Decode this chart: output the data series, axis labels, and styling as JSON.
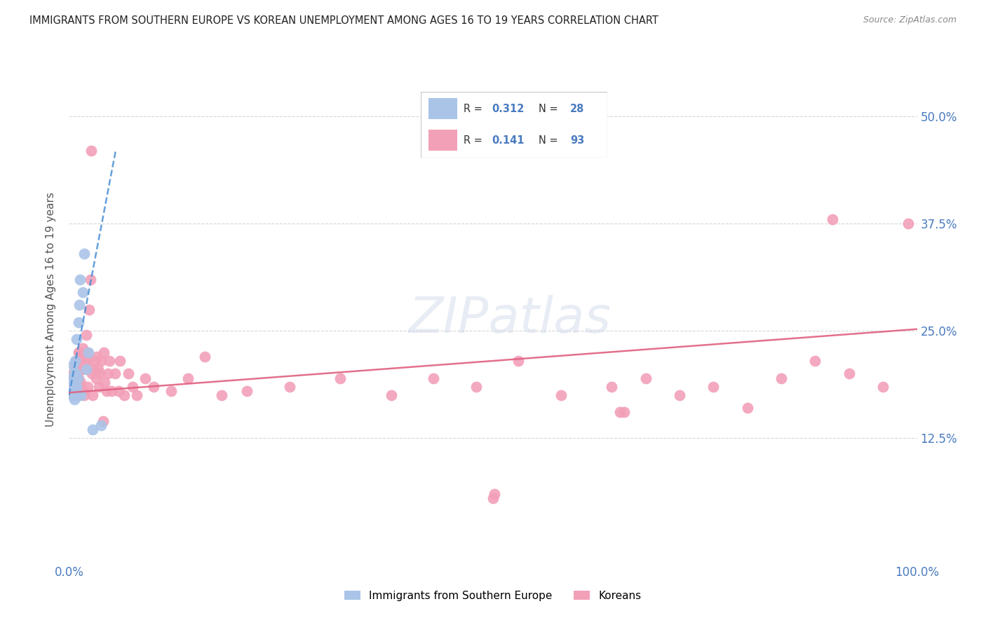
{
  "title": "IMMIGRANTS FROM SOUTHERN EUROPE VS KOREAN UNEMPLOYMENT AMONG AGES 16 TO 19 YEARS CORRELATION CHART",
  "source": "Source: ZipAtlas.com",
  "ylabel": "Unemployment Among Ages 16 to 19 years",
  "blue_R": 0.312,
  "blue_N": 28,
  "pink_R": 0.141,
  "pink_N": 93,
  "blue_color": "#aac4e8",
  "pink_color": "#f2a0b8",
  "trendline_blue_color": "#4a8fd4",
  "trendline_pink_color": "#e06080",
  "background_color": "#ffffff",
  "grid_color": "#d8d8d8",
  "xlim": [
    0.0,
    1.0
  ],
  "ylim": [
    -0.02,
    0.57
  ],
  "ytick_vals": [
    0.125,
    0.25,
    0.375,
    0.5
  ],
  "ytick_labels": [
    "12.5%",
    "25.0%",
    "37.5%",
    "50.0%"
  ],
  "blue_x": [
    0.003,
    0.004,
    0.004,
    0.005,
    0.005,
    0.005,
    0.006,
    0.006,
    0.006,
    0.007,
    0.007,
    0.007,
    0.008,
    0.008,
    0.009,
    0.009,
    0.01,
    0.01,
    0.011,
    0.012,
    0.013,
    0.014,
    0.016,
    0.018,
    0.02,
    0.023,
    0.028,
    0.038
  ],
  "blue_y": [
    0.185,
    0.175,
    0.195,
    0.18,
    0.195,
    0.21,
    0.185,
    0.2,
    0.17,
    0.19,
    0.175,
    0.215,
    0.2,
    0.175,
    0.24,
    0.185,
    0.195,
    0.175,
    0.26,
    0.28,
    0.31,
    0.175,
    0.295,
    0.34,
    0.205,
    0.225,
    0.135,
    0.14
  ],
  "pink_x": [
    0.003,
    0.004,
    0.005,
    0.005,
    0.006,
    0.006,
    0.007,
    0.007,
    0.007,
    0.008,
    0.008,
    0.009,
    0.009,
    0.009,
    0.01,
    0.01,
    0.01,
    0.011,
    0.011,
    0.012,
    0.012,
    0.013,
    0.013,
    0.014,
    0.015,
    0.015,
    0.016,
    0.016,
    0.017,
    0.018,
    0.019,
    0.02,
    0.02,
    0.021,
    0.022,
    0.022,
    0.023,
    0.024,
    0.025,
    0.026,
    0.027,
    0.028,
    0.029,
    0.03,
    0.032,
    0.033,
    0.034,
    0.035,
    0.036,
    0.038,
    0.04,
    0.041,
    0.042,
    0.044,
    0.046,
    0.048,
    0.05,
    0.054,
    0.058,
    0.06,
    0.065,
    0.07,
    0.075,
    0.08,
    0.09,
    0.1,
    0.12,
    0.14,
    0.16,
    0.18,
    0.21,
    0.26,
    0.32,
    0.38,
    0.43,
    0.48,
    0.53,
    0.58,
    0.64,
    0.68,
    0.72,
    0.76,
    0.8,
    0.84,
    0.88,
    0.92,
    0.96,
    0.99,
    0.5,
    0.502,
    0.65,
    0.655,
    0.9
  ],
  "pink_y": [
    0.19,
    0.185,
    0.175,
    0.2,
    0.185,
    0.195,
    0.175,
    0.195,
    0.21,
    0.18,
    0.205,
    0.18,
    0.195,
    0.215,
    0.175,
    0.19,
    0.205,
    0.195,
    0.225,
    0.18,
    0.225,
    0.185,
    0.205,
    0.19,
    0.18,
    0.22,
    0.205,
    0.23,
    0.18,
    0.175,
    0.21,
    0.225,
    0.245,
    0.215,
    0.185,
    0.22,
    0.205,
    0.275,
    0.31,
    0.46,
    0.2,
    0.175,
    0.205,
    0.215,
    0.195,
    0.22,
    0.205,
    0.185,
    0.2,
    0.215,
    0.145,
    0.225,
    0.19,
    0.18,
    0.2,
    0.215,
    0.18,
    0.2,
    0.18,
    0.215,
    0.175,
    0.2,
    0.185,
    0.175,
    0.195,
    0.185,
    0.18,
    0.195,
    0.22,
    0.175,
    0.18,
    0.185,
    0.195,
    0.175,
    0.195,
    0.185,
    0.215,
    0.175,
    0.185,
    0.195,
    0.175,
    0.185,
    0.16,
    0.195,
    0.215,
    0.2,
    0.185,
    0.375,
    0.055,
    0.06,
    0.155,
    0.155,
    0.38
  ],
  "blue_trend_x": [
    0.0,
    0.055
  ],
  "blue_trend_y": [
    0.175,
    0.46
  ],
  "pink_trend_x": [
    0.0,
    1.0
  ],
  "pink_trend_y": [
    0.178,
    0.252
  ],
  "legend_blue_label": "Immigrants from Southern Europe",
  "legend_pink_label": "Koreans",
  "watermark": "ZIPatlas",
  "tick_color": "#4a7bbf"
}
